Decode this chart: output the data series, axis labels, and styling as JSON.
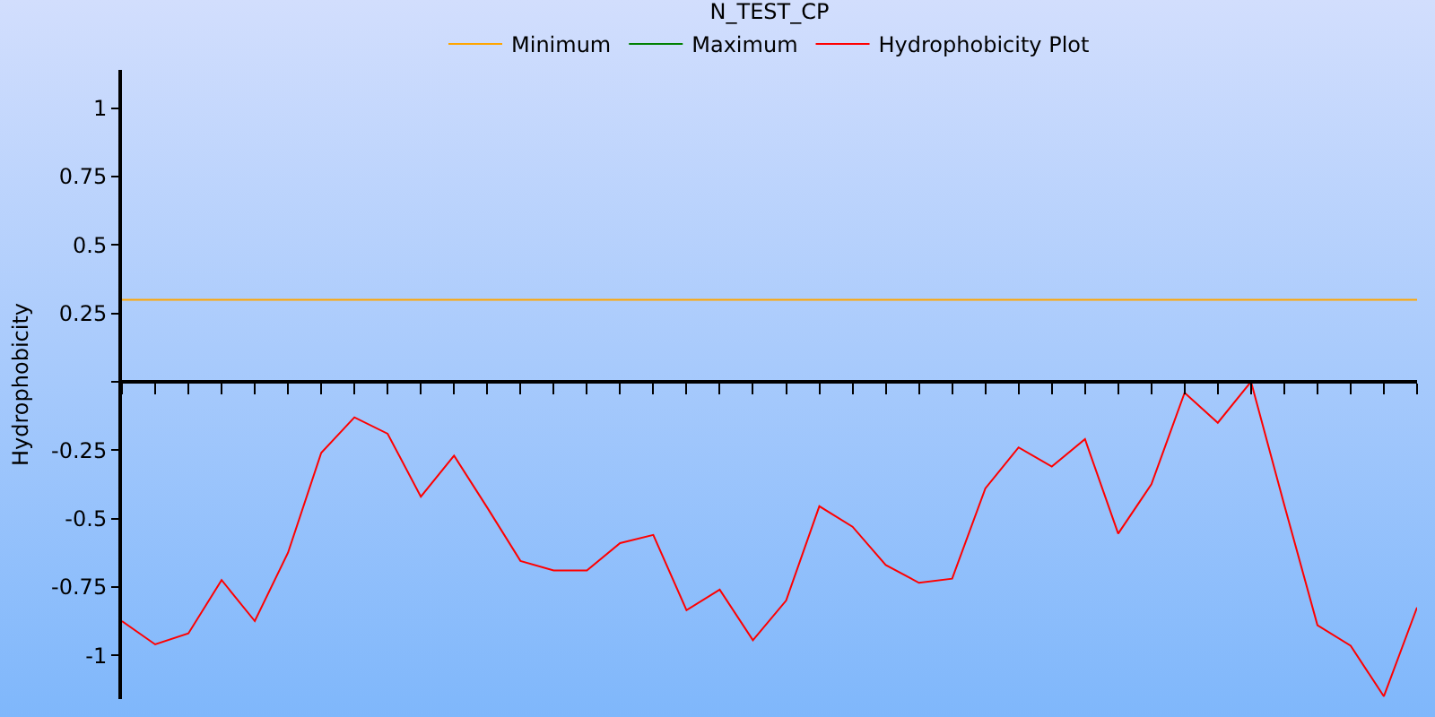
{
  "chart_data": {
    "type": "line",
    "title": "N_TEST_CP",
    "ylabel": "Hydrophobicity",
    "categories": [
      null,
      null,
      null,
      null,
      null,
      null,
      null,
      null,
      null,
      null,
      null,
      null,
      null,
      null,
      null,
      null,
      null,
      null,
      null,
      null,
      null,
      null,
      null,
      null,
      null,
      null,
      null,
      null,
      null,
      null,
      null,
      null,
      null,
      null,
      null,
      null,
      null,
      null,
      null,
      null
    ],
    "series": [
      {
        "name": "Minimum",
        "color": "#ffa500",
        "values": [
          0.3,
          0.3,
          0.3,
          0.3,
          0.3,
          0.3,
          0.3,
          0.3,
          0.3,
          0.3,
          0.3,
          0.3,
          0.3,
          0.3,
          0.3,
          0.3,
          0.3,
          0.3,
          0.3,
          0.3,
          0.3,
          0.3,
          0.3,
          0.3,
          0.3,
          0.3,
          0.3,
          0.3,
          0.3,
          0.3,
          0.3,
          0.3,
          0.3,
          0.3,
          0.3,
          0.3,
          0.3,
          0.3,
          0.3,
          0.3
        ]
      },
      {
        "name": "Maximum",
        "color": "#008000",
        "values": [
          null,
          null,
          null,
          null,
          null,
          null,
          null,
          null,
          null,
          null,
          null,
          null,
          null,
          null,
          null,
          null,
          null,
          null,
          null,
          null,
          null,
          null,
          null,
          null,
          null,
          null,
          null,
          null,
          null,
          null,
          null,
          null,
          null,
          null,
          null,
          null,
          null,
          null,
          null,
          null
        ]
      },
      {
        "name": "Hydrophobicity Plot",
        "color": "#ff0000",
        "values": [
          -0.875,
          -0.96,
          -0.92,
          -0.725,
          -0.875,
          -0.625,
          -0.26,
          -0.13,
          -0.19,
          -0.42,
          -0.27,
          -0.46,
          -0.655,
          -0.69,
          -0.69,
          -0.59,
          -0.56,
          -0.835,
          -0.76,
          -0.945,
          -0.8,
          -0.455,
          -0.53,
          -0.67,
          -0.735,
          -0.72,
          -0.39,
          -0.24,
          -0.31,
          -0.21,
          -0.555,
          -0.375,
          -0.04,
          -0.15,
          0.0,
          -0.45,
          -0.89,
          -0.965,
          -1.15,
          -0.825
        ]
      }
    ],
    "ylim": [
      -1.16,
      1.14
    ],
    "yticks": [
      -1,
      -0.75,
      -0.5,
      -0.25,
      {
        "value": 0,
        "label": null
      },
      0.25,
      0.5,
      0.75,
      1
    ],
    "tick_labels": "y",
    "legend": "top",
    "marker": "none",
    "line_style": "solid"
  }
}
